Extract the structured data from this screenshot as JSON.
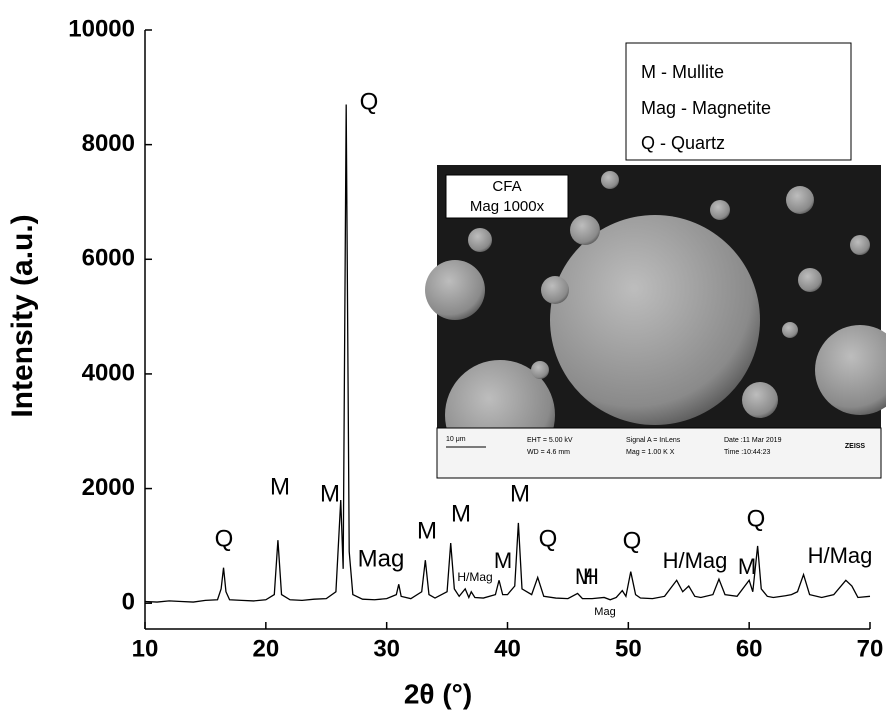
{
  "chart_data": {
    "type": "line",
    "x_label": "2θ (°)",
    "y_label": "Intensity (a.u.)",
    "xlim": [
      10,
      70
    ],
    "ylim": [
      -450,
      10000
    ],
    "xticks": [
      10,
      20,
      30,
      40,
      50,
      60,
      70
    ],
    "yticks": [
      0,
      2000,
      4000,
      6000,
      8000,
      10000
    ],
    "x": [
      10,
      11,
      12,
      13,
      14,
      15,
      16,
      16.3,
      16.5,
      16.7,
      17,
      18,
      19,
      20,
      20.7,
      21,
      21.3,
      22,
      23,
      24,
      25,
      25.8,
      26.2,
      26.4,
      26.65,
      26.9,
      27.2,
      28,
      29,
      30,
      30.8,
      31,
      31.2,
      32,
      32.9,
      33.2,
      33.5,
      34,
      35,
      35.3,
      35.6,
      36,
      36.5,
      36.8,
      37,
      37.3,
      38,
      39,
      39.3,
      39.6,
      40,
      40.6,
      40.9,
      41.2,
      42,
      42.5,
      43,
      44,
      45,
      45.8,
      46.2,
      47,
      48,
      48.5,
      49,
      49.5,
      49.8,
      50.2,
      50.6,
      51,
      52,
      53,
      54,
      54.5,
      55,
      55.5,
      56,
      57,
      57.5,
      58,
      59,
      60,
      60.3,
      60.7,
      61,
      61.5,
      62,
      63,
      63.5,
      64,
      64.5,
      65,
      66,
      67,
      68,
      68.5,
      69,
      70
    ],
    "series": [
      {
        "color": "#000000",
        "values": [
          30,
          20,
          40,
          30,
          20,
          50,
          60,
          250,
          620,
          200,
          60,
          50,
          40,
          60,
          150,
          1100,
          150,
          60,
          50,
          70,
          80,
          200,
          1800,
          600,
          8700,
          900,
          150,
          70,
          60,
          80,
          150,
          330,
          120,
          80,
          200,
          750,
          150,
          90,
          200,
          1050,
          250,
          120,
          250,
          100,
          200,
          100,
          90,
          150,
          400,
          150,
          150,
          300,
          1400,
          250,
          150,
          450,
          120,
          90,
          80,
          170,
          80,
          80,
          100,
          60,
          100,
          220,
          120,
          550,
          150,
          90,
          80,
          120,
          400,
          200,
          300,
          120,
          100,
          150,
          420,
          150,
          120,
          400,
          200,
          1000,
          250,
          120,
          100,
          130,
          150,
          200,
          500,
          150,
          100,
          150,
          400,
          300,
          100,
          120
        ]
      }
    ],
    "annotations": [
      "Q",
      "M",
      "M",
      "Q",
      "Mag",
      "M",
      "M",
      "H/Mag",
      "M",
      "M",
      "Q",
      "M",
      "Mag",
      "H",
      "Q",
      "H/Mag",
      "M",
      "Q",
      "H/Mag"
    ],
    "legend_text": [
      "M - Mullite",
      "Mag - Magnetite",
      "Q - Quartz"
    ],
    "inset": {
      "label": [
        "CFA",
        "Mag 1000x"
      ],
      "info": [
        "10 μm",
        "EHT = 5.00 kV",
        "WD = 4.6 mm",
        "Signal A = InLens",
        "Mag = 1.00 K X",
        "Date :11 Mar 2019",
        "Time :10:44:23",
        "ZEISS"
      ]
    }
  }
}
